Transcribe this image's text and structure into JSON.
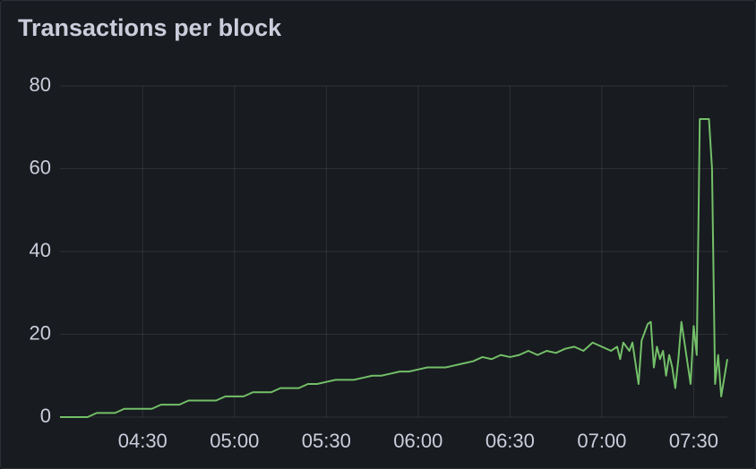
{
  "chart_data": {
    "type": "line",
    "title": "Transactions per block",
    "x": [
      243,
      246,
      249,
      252,
      255,
      258,
      261,
      264,
      267,
      270,
      273,
      276,
      279,
      282,
      285,
      288,
      291,
      294,
      297,
      300,
      303,
      306,
      309,
      312,
      315,
      318,
      321,
      324,
      327,
      330,
      333,
      336,
      339,
      342,
      345,
      348,
      351,
      354,
      357,
      360,
      363,
      366,
      369,
      372,
      375,
      378,
      381,
      384,
      387,
      390,
      393,
      396,
      399,
      402,
      405,
      408,
      411,
      414,
      417,
      420,
      423,
      425,
      426,
      427,
      429,
      430,
      432,
      433,
      435,
      436,
      437,
      438,
      439,
      440,
      441,
      442,
      443,
      444,
      445,
      446,
      447,
      448,
      449,
      450,
      451,
      452,
      455,
      456,
      457,
      458,
      459,
      461
    ],
    "values": [
      0,
      0,
      0,
      0,
      1,
      1,
      1,
      2,
      2,
      2,
      2,
      3,
      3,
      3,
      4,
      4,
      4,
      4,
      5,
      5,
      5,
      6,
      6,
      6,
      7,
      7,
      7,
      8,
      8,
      8.5,
      9,
      9,
      9,
      9.5,
      10,
      10,
      10.5,
      11,
      11,
      11.5,
      12,
      12,
      12,
      12.5,
      13,
      13.5,
      14.5,
      14,
      15,
      14.5,
      15,
      16,
      15,
      16,
      15.5,
      16.5,
      17,
      16,
      18,
      17,
      16,
      17,
      14,
      18,
      16,
      18,
      8,
      18.5,
      22.5,
      23,
      12,
      17,
      14,
      16,
      10,
      15,
      12,
      7,
      14,
      23,
      18,
      13,
      8,
      22,
      15,
      72,
      72,
      60,
      8,
      15,
      5,
      14
    ],
    "color": "#73bf69",
    "xlim": [
      243,
      461
    ],
    "xticks": [
      {
        "value": 270,
        "label": "04:30"
      },
      {
        "value": 300,
        "label": "05:00"
      },
      {
        "value": 330,
        "label": "05:30"
      },
      {
        "value": 360,
        "label": "06:00"
      },
      {
        "value": 390,
        "label": "06:30"
      },
      {
        "value": 420,
        "label": "07:00"
      },
      {
        "value": 450,
        "label": "07:30"
      }
    ],
    "ylim": [
      0,
      80
    ],
    "yticks": [
      0,
      20,
      40,
      60,
      80
    ],
    "grid": true
  }
}
